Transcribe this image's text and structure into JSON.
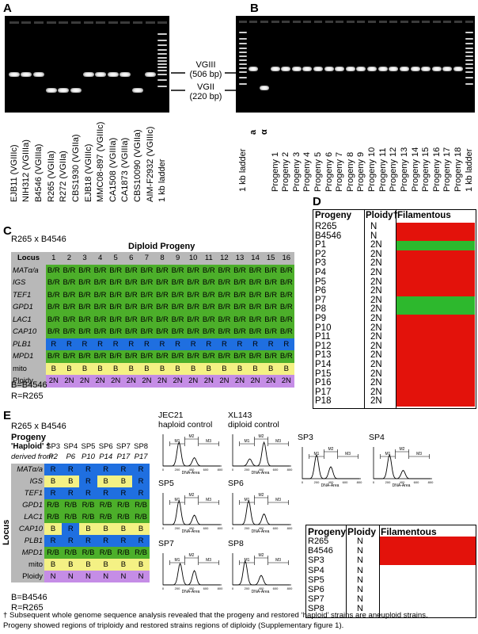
{
  "panels": {
    "A": "A",
    "B": "B",
    "C": "C",
    "D": "D",
    "E": "E"
  },
  "gelA": {
    "lanes": [
      "EJB11 (VGIIIc)",
      "NIH312 (VGIIIa)",
      "B4546 (VGIIIa)",
      "R265 (VGIIa)",
      "R272 (VGIIa)",
      "CBS1930 (VGIIa)",
      "EJB18 (VGIIIc)",
      "MMC08-897 (VGIIIc)",
      "CA1508 (VGIIIa)",
      "CA1873 (VGIIIa)",
      "CBS10090 (VGIIa)",
      "AIM-F2932 (VGIIIc)",
      "1 kb ladder"
    ]
  },
  "gelB": {
    "lanes": [
      "1 kb ladder",
      "a",
      "α",
      "Progeny 1",
      "Progeny 2",
      "Progeny 3",
      "Progeny 4",
      "Progeny 5",
      "Progeny 6",
      "Progeny 7",
      "Progeny 8",
      "Progeny 9",
      "Progeny 10",
      "Progeny 11",
      "Progeny 12",
      "Progeny 13",
      "Progeny 14",
      "Progeny 15",
      "Progeny 16",
      "Progeny 17",
      "Progeny 18",
      "1 kb ladder"
    ]
  },
  "size_labels": {
    "vgiii": "VGIII",
    "vgiii_bp": "(506 bp)",
    "vgii": "VGII",
    "vgii_bp": "(220 bp)"
  },
  "panelC": {
    "cross": "R265 x B4546",
    "title": "Diploid Progeny",
    "locus_header": "Locus",
    "columns": [
      "1",
      "2",
      "3",
      "4",
      "5",
      "6",
      "7",
      "8",
      "9",
      "10",
      "11",
      "12",
      "13",
      "14",
      "15",
      "16"
    ],
    "rows": [
      {
        "locus": "MATα/a",
        "value": "B/R",
        "color": "#4caf2a"
      },
      {
        "locus": "IGS",
        "value": "B/R",
        "color": "#4caf2a"
      },
      {
        "locus": "TEF1",
        "value": "B/R",
        "color": "#4caf2a"
      },
      {
        "locus": "GPD1",
        "value": "B/R",
        "color": "#4caf2a"
      },
      {
        "locus": "LAC1",
        "value": "B/R",
        "color": "#4caf2a"
      },
      {
        "locus": "CAP10",
        "value": "B/R",
        "color": "#4caf2a"
      },
      {
        "locus": "PLB1",
        "value": "R",
        "color": "#1f6fe0"
      },
      {
        "locus": "MPD1",
        "value": "B/R",
        "color": "#4caf2a"
      },
      {
        "locus": "mito",
        "value": "B",
        "color": "#f4f184"
      },
      {
        "locus": "Ploidy",
        "value": "2N",
        "color": "#c58de6"
      }
    ],
    "legend_b": "B=B4546",
    "legend_r": "R=R265"
  },
  "panelD": {
    "headers": [
      "Progeny",
      "Ploidy†",
      "Filamentous"
    ],
    "rows": [
      [
        "R265",
        "N",
        "red"
      ],
      [
        "B4546",
        "N",
        "red"
      ],
      [
        "P1",
        "2N",
        "green"
      ],
      [
        "P2",
        "2N",
        "red"
      ],
      [
        "P3",
        "2N",
        "red"
      ],
      [
        "P4",
        "2N",
        "red"
      ],
      [
        "P5",
        "2N",
        "red"
      ],
      [
        "P6",
        "2N",
        "red"
      ],
      [
        "P7",
        "2N",
        "green"
      ],
      [
        "P8",
        "2N",
        "green"
      ],
      [
        "P9",
        "2N",
        "red"
      ],
      [
        "P10",
        "2N",
        "red"
      ],
      [
        "P11",
        "2N",
        "red"
      ],
      [
        "P12",
        "2N",
        "red"
      ],
      [
        "P13",
        "2N",
        "red"
      ],
      [
        "P14",
        "2N",
        "red"
      ],
      [
        "P15",
        "2N",
        "red"
      ],
      [
        "P16",
        "2N",
        "red"
      ],
      [
        "P17",
        "2N",
        "red"
      ],
      [
        "P18",
        "2N",
        "red"
      ]
    ]
  },
  "panelE": {
    "cross": "R265 x B4546",
    "progeny": "Progeny",
    "haploid": "'Haploid' †",
    "derived": "derived from",
    "locus_header": "Locus",
    "columns": [
      "SP3",
      "SP4",
      "SP5",
      "SP6",
      "SP7",
      "SP8"
    ],
    "derived_from": [
      "P2",
      "P6",
      "P10",
      "P14",
      "P17",
      "P17"
    ],
    "rows": [
      {
        "locus": "MATα/a",
        "values": [
          "R",
          "R",
          "R",
          "R",
          "R",
          "R"
        ]
      },
      {
        "locus": "IGS",
        "values": [
          "B",
          "B",
          "R",
          "B",
          "B",
          "R"
        ]
      },
      {
        "locus": "TEF1",
        "values": [
          "R",
          "R",
          "R",
          "R",
          "R",
          "R"
        ]
      },
      {
        "locus": "GPD1",
        "values": [
          "R/B",
          "R/B",
          "R/B",
          "R/B",
          "R/B",
          "R/B"
        ]
      },
      {
        "locus": "LAC1",
        "values": [
          "R/B",
          "R/B",
          "R/B",
          "R/B",
          "R/B",
          "R/B"
        ]
      },
      {
        "locus": "CAP10",
        "values": [
          "B",
          "R",
          "B",
          "B",
          "B",
          "B"
        ]
      },
      {
        "locus": "PLB1",
        "values": [
          "R",
          "R",
          "R",
          "R",
          "R",
          "R"
        ]
      },
      {
        "locus": "MPD1",
        "values": [
          "R/B",
          "R/B",
          "R/B",
          "R/B",
          "R/B",
          "R/B"
        ]
      },
      {
        "locus": "mito",
        "values": [
          "B",
          "B",
          "B",
          "B",
          "B",
          "B"
        ]
      },
      {
        "locus": "Ploidy",
        "values": [
          "N",
          "N",
          "N",
          "N",
          "N",
          "N"
        ]
      }
    ],
    "legend_b": "B=B4546",
    "legend_r": "R=R265",
    "hist_titles": {
      "jec21": "JEC21",
      "jec21_sub": "haploid control",
      "xl143": "XL143",
      "xl143_sub": "diploid control",
      "sp3": "SP3",
      "sp4": "SP4",
      "sp5": "SP5",
      "sp6": "SP6",
      "sp7": "SP7",
      "sp8": "SP8"
    },
    "hist_axis": "DNA-Area",
    "gate_labels": [
      "M1",
      "M2",
      "M3"
    ],
    "table_headers": [
      "Progeny",
      "Ploidy",
      "Filamentous"
    ],
    "table_rows": [
      [
        "R265",
        "N"
      ],
      [
        "B4546",
        "N"
      ],
      [
        "SP3",
        "N"
      ],
      [
        "SP4",
        "N"
      ],
      [
        "SP5",
        "N"
      ],
      [
        "SP6",
        "N"
      ],
      [
        "SP7",
        "N"
      ],
      [
        "SP8",
        "N"
      ]
    ]
  },
  "footnote_line1": "† Subsequent whole genome sequence analysis revealed that the progeny and restored ‘haploid’ strains are aneuploid strains.",
  "footnote_line2": "Progeny showed regions of triploidy and restored strains regions of diploidy (Supplementary figure 1).",
  "colors": {
    "green": "#4caf2a",
    "blue": "#1f6fe0",
    "yellow": "#f4f184",
    "purple": "#c58de6",
    "grey": "#b8b8b8",
    "red": "#e3120b",
    "filament_green": "#2db82d"
  }
}
